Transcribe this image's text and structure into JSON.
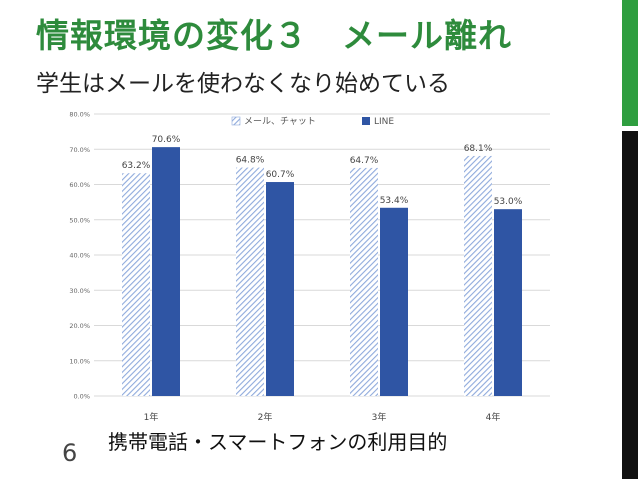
{
  "slide": {
    "title": "情報環境の変化３　メール離れ",
    "subtitle": "学生はメールを使わなくなり始めている",
    "page_number": "6",
    "caption": "携帯電話・スマートフォンの利用目的"
  },
  "colors": {
    "title": "#2e8b3c",
    "mail_series": "#8faadc",
    "line_series": "#2f55a4",
    "side_bar_green": "#2e9e3f",
    "side_bar_black": "#111111"
  },
  "chart_data": {
    "type": "bar",
    "categories": [
      "1年",
      "2年",
      "3年",
      "4年"
    ],
    "series": [
      {
        "name": "メール、チャット",
        "values": [
          63.2,
          64.8,
          64.7,
          68.1
        ],
        "labels": [
          "63.2%",
          "64.8%",
          "64.7%",
          "68.1%"
        ],
        "pattern": "diagonal-hatch",
        "color": "#8faadc"
      },
      {
        "name": "LINE",
        "values": [
          70.6,
          60.7,
          53.4,
          53.0
        ],
        "labels": [
          "70.6%",
          "60.7%",
          "53.4%",
          "53.0%"
        ],
        "pattern": "solid",
        "color": "#2f55a4"
      }
    ],
    "y_ticks": [
      "0.0%",
      "10.0%",
      "20.0%",
      "30.0%",
      "40.0%",
      "50.0%",
      "60.0%",
      "70.0%",
      "80.0%"
    ],
    "ylim": [
      0,
      80
    ],
    "ylabel": "",
    "xlabel": "",
    "grid": true,
    "legend_position": "top"
  }
}
